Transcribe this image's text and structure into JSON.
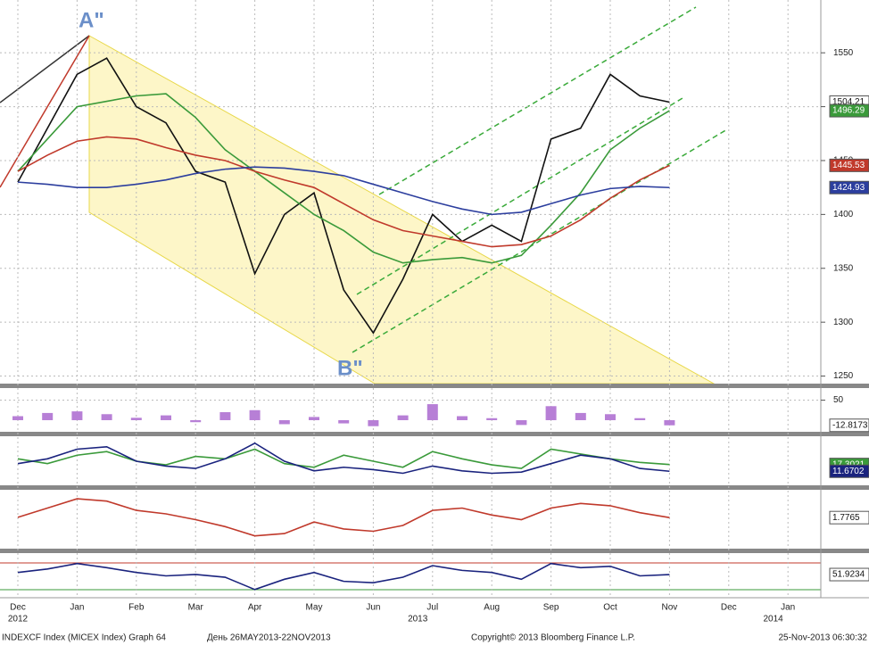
{
  "chart_data": [
    {
      "type": "line",
      "categories": [
        "Dec",
        null,
        "Jan",
        null,
        "Feb",
        null,
        "Mar",
        null,
        "Apr",
        null,
        "May",
        null,
        "Jun",
        null,
        "Jul",
        null,
        "Aug",
        null,
        "Sep",
        null,
        "Oct",
        null,
        "Nov",
        null,
        "Dec",
        null,
        "Jan",
        null
      ],
      "year_labels": [
        "2012",
        "2013",
        "2014"
      ],
      "annotations": [
        "A\"",
        "B\""
      ],
      "ylim": [
        1243,
        1599
      ],
      "yticks": [
        1250,
        1300,
        1350,
        1400,
        1450,
        1500,
        1550
      ],
      "grid": true,
      "series": [
        {
          "color": "#111111",
          "values": [
            1430,
            1480,
            1530,
            1545,
            1500,
            1485,
            1440,
            1430,
            1345,
            1400,
            1420,
            1330,
            1290,
            1340,
            1400,
            1375,
            1390,
            1375,
            1470,
            1480,
            1530,
            1510,
            1504.21,
            null,
            null,
            null,
            null,
            null
          ]
        },
        {
          "color": "#3a9a3a",
          "values": [
            1440,
            1470,
            1500,
            1505,
            1510,
            1512,
            1490,
            1460,
            1440,
            1420,
            1400,
            1385,
            1365,
            1355,
            1358,
            1360,
            1355,
            1362,
            1390,
            1420,
            1460,
            1480,
            1496.29,
            null,
            null,
            null,
            null,
            null
          ]
        },
        {
          "color": "#c0392b",
          "values": [
            1440,
            1455,
            1468,
            1472,
            1470,
            1462,
            1455,
            1450,
            1440,
            1432,
            1425,
            1410,
            1395,
            1385,
            1380,
            1375,
            1370,
            1372,
            1380,
            1395,
            1415,
            1432,
            1445.53,
            null,
            null,
            null,
            null,
            null
          ]
        },
        {
          "color": "#2c3e9e",
          "values": [
            1430,
            1428,
            1425,
            1425,
            1428,
            1432,
            1438,
            1442,
            1444,
            1443,
            1440,
            1436,
            1428,
            1420,
            1412,
            1405,
            1400,
            1402,
            1410,
            1418,
            1424,
            1426,
            1424.93,
            null,
            null,
            null,
            null,
            null
          ]
        }
      ],
      "tags": [
        {
          "value": 1504.21,
          "color": "#ffffff"
        },
        {
          "value": 1496.29,
          "color": "#3a9a3a"
        },
        {
          "value": 1445.53,
          "color": "#c0392b"
        },
        {
          "value": 1424.93,
          "color": "#2c3e9e"
        }
      ]
    },
    {
      "type": "bar",
      "ylim": [
        -29,
        78
      ],
      "yticks": [
        50
      ],
      "grid": true,
      "series": [
        {
          "color": "#b77fd6",
          "values": [
            10,
            18,
            22,
            15,
            6,
            12,
            -5,
            20,
            25,
            -10,
            8,
            -8,
            -15,
            12,
            40,
            10,
            5,
            -12,
            35,
            18,
            15,
            5,
            -12.8173,
            null,
            null,
            null,
            null,
            null
          ]
        }
      ],
      "tags": [
        {
          "value": -12.8173,
          "color": "#ffffff"
        }
      ]
    },
    {
      "type": "line",
      "ylim": [
        0,
        40
      ],
      "grid": false,
      "series": [
        {
          "color": "#3a9a3a",
          "values": [
            22,
            18,
            25,
            28,
            20,
            17,
            24,
            22,
            30,
            18,
            15,
            25,
            20,
            15,
            28,
            22,
            17,
            14,
            30,
            26,
            22,
            19,
            17.3021,
            null,
            null,
            null,
            null,
            null
          ]
        },
        {
          "color": "#1a237e",
          "values": [
            18,
            22,
            30,
            32,
            20,
            16,
            14,
            22,
            35,
            20,
            12,
            15,
            13,
            10,
            16,
            12,
            10,
            11,
            18,
            25,
            22,
            14,
            11.6702,
            null,
            null,
            null,
            null,
            null
          ]
        }
      ],
      "tags": [
        {
          "value": 17.3021,
          "color": "#3a9a3a"
        },
        {
          "value": 11.6702,
          "color": "#1a237e"
        }
      ]
    },
    {
      "type": "line",
      "ylim": [
        -25,
        25
      ],
      "grid": false,
      "series": [
        {
          "color": "#c0392b",
          "values": [
            2,
            10,
            18,
            16,
            8,
            5,
            0,
            -6,
            -14,
            -12,
            -2,
            -8,
            -10,
            -5,
            8,
            10,
            4,
            0,
            10,
            14,
            12,
            6,
            1.7765,
            null,
            null,
            null,
            null,
            null
          ]
        }
      ],
      "tags": [
        {
          "value": 1.7765,
          "color": "#ffffff"
        }
      ]
    },
    {
      "type": "line",
      "ylim": [
        18,
        82
      ],
      "grid": false,
      "series": [
        {
          "color": "#1a237e",
          "values": [
            55,
            60,
            68,
            62,
            55,
            50,
            52,
            48,
            30,
            45,
            55,
            42,
            40,
            48,
            65,
            58,
            55,
            45,
            68,
            62,
            64,
            50,
            51.9234,
            null,
            null,
            null,
            null,
            null
          ]
        }
      ],
      "tags": [
        {
          "value": 51.9234,
          "color": "#ffffff"
        }
      ]
    }
  ],
  "footer": {
    "left": "INDEXCF Index (MICEX Index) Graph 64",
    "middle": "День 26MAY2013-22NOV2013",
    "copyright": "Copyright© 2013 Bloomberg Finance L.P.",
    "right": "25-Nov-2013 06:30:32"
  }
}
